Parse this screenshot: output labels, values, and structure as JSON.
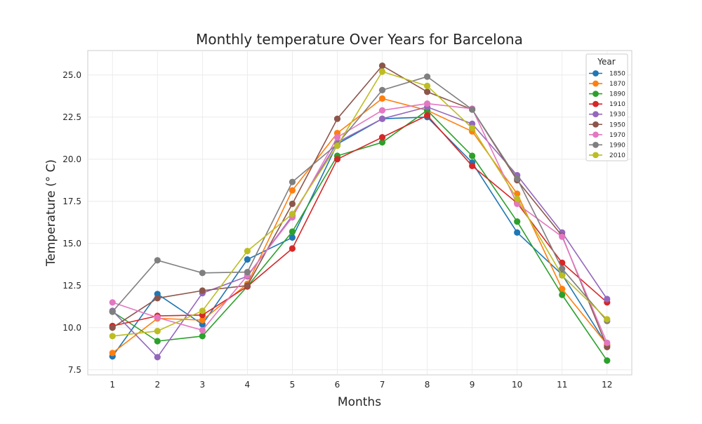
{
  "chart_data": {
    "type": "line",
    "title": "Monthly temperature Over Years for Barcelona",
    "xlabel": "Months",
    "ylabel": "Temperature (° C)",
    "x": [
      1,
      2,
      3,
      4,
      5,
      6,
      7,
      8,
      9,
      10,
      11,
      12
    ],
    "xlim": [
      0.45,
      12.55
    ],
    "ylim": [
      7.2,
      26.45
    ],
    "yticks": [
      7.5,
      10.0,
      12.5,
      15.0,
      17.5,
      20.0,
      22.5,
      25.0
    ],
    "ytick_labels": [
      "7.5",
      "10.0",
      "12.5",
      "15.0",
      "17.5",
      "20.0",
      "22.5",
      "25.0"
    ],
    "xtick_labels": [
      "1",
      "2",
      "3",
      "4",
      "5",
      "6",
      "7",
      "8",
      "9",
      "10",
      "11",
      "12"
    ],
    "grid": true,
    "legend_title": "Year",
    "legend_position": "top-right",
    "series": [
      {
        "name": "1850",
        "color": "#1f77b4",
        "values": [
          8.3,
          12.0,
          10.2,
          14.05,
          15.35,
          20.9,
          22.4,
          22.5,
          19.8,
          15.65,
          13.15,
          8.95
        ]
      },
      {
        "name": "1870",
        "color": "#ff7f0e",
        "values": [
          8.5,
          10.55,
          10.45,
          12.6,
          18.15,
          21.55,
          23.6,
          22.9,
          21.65,
          17.95,
          12.3,
          9.0
        ]
      },
      {
        "name": "1890",
        "color": "#2ca02c",
        "values": [
          10.95,
          9.2,
          9.5,
          12.45,
          15.7,
          20.2,
          21.0,
          22.9,
          20.2,
          16.3,
          11.95,
          8.05
        ]
      },
      {
        "name": "1910",
        "color": "#d62728",
        "values": [
          10.1,
          10.7,
          10.75,
          12.45,
          14.7,
          20.0,
          21.3,
          22.6,
          19.6,
          17.4,
          13.85,
          11.5
        ]
      },
      {
        "name": "1930",
        "color": "#9467bd",
        "values": [
          11.0,
          8.25,
          12.05,
          13.05,
          16.65,
          21.0,
          22.4,
          23.1,
          22.1,
          19.05,
          15.65,
          11.7
        ]
      },
      {
        "name": "1950",
        "color": "#8c564b",
        "values": [
          10.0,
          11.75,
          12.2,
          12.5,
          17.35,
          22.4,
          25.55,
          24.0,
          22.95,
          18.75,
          15.45,
          8.85
        ]
      },
      {
        "name": "1970",
        "color": "#e377c2",
        "values": [
          11.5,
          10.6,
          9.85,
          13.1,
          16.55,
          21.3,
          22.9,
          23.3,
          23.0,
          17.35,
          15.4,
          9.1
        ]
      },
      {
        "name": "1990",
        "color": "#7f7f7f",
        "values": [
          10.95,
          14.0,
          13.25,
          13.3,
          18.65,
          20.9,
          24.1,
          24.9,
          22.95,
          18.85,
          13.5,
          10.4
        ]
      },
      {
        "name": "2010",
        "color": "#bcbd22",
        "values": [
          9.5,
          9.8,
          11.0,
          14.55,
          16.75,
          20.8,
          25.2,
          24.35,
          21.85,
          17.65,
          13.1,
          10.5
        ]
      }
    ]
  }
}
